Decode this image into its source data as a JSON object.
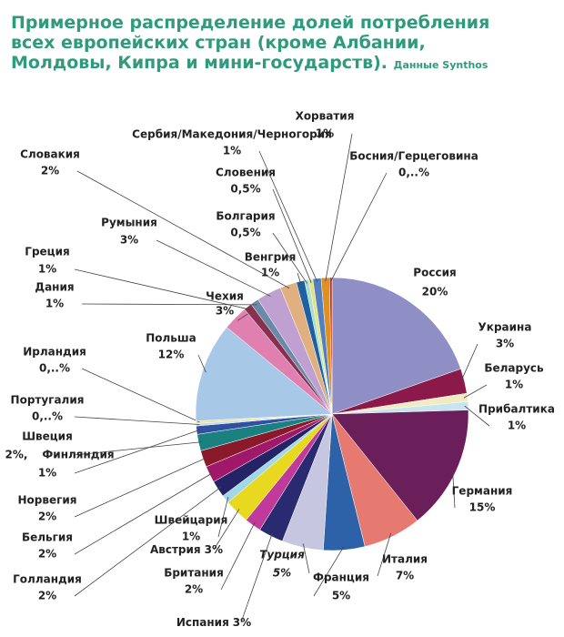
{
  "chart_data": {
    "type": "pie",
    "title": "Примерное распределение долей потребления всех европейских стран (кроме Албании, Молдовы, Кипра и мини-государств).",
    "subtitle": "Данные Synthos",
    "categories": [
      "Россия",
      "Украина",
      "Беларусь",
      "Прибалтика",
      "Германия",
      "Италия",
      "Франция",
      "Турция",
      "Испания",
      "Британия",
      "Австрия",
      "Швейцария",
      "Голландия",
      "Бельгия",
      "Норвегия",
      "Швеция",
      "Финляндия",
      "Португалия",
      "Ирландия",
      "Польша",
      "Чехия",
      "Греция",
      "Дания",
      "Румыния",
      "Словакия",
      "Венгрия",
      "Болгария",
      "Словения",
      "Сербия/Македония/Черногория",
      "Хорватия",
      "Босния/Герцеговина"
    ],
    "values": [
      20,
      3,
      1,
      1,
      15,
      7,
      5,
      5,
      3,
      2,
      3,
      1,
      2,
      2,
      2,
      2,
      1,
      0.3,
      0.3,
      12,
      3,
      1,
      1,
      3,
      2,
      1,
      0.5,
      0.5,
      1,
      1,
      0.3
    ],
    "value_labels": [
      "20%",
      "3%",
      "1%",
      "1%",
      "15%",
      "7%",
      "5%",
      "5%",
      "3%",
      "2%",
      "3%",
      "1%",
      "2%",
      "2%",
      "2%",
      "2%,",
      "1%",
      "0,..%",
      "0,..%",
      "12%",
      "3%",
      "1%",
      "1%",
      "3%",
      "2%",
      "1%",
      "0,5%",
      "0,5%",
      "1%",
      "1%",
      "0,..%"
    ],
    "colors": [
      "#8f8fc6",
      "#8b1a4a",
      "#f0ebc0",
      "#c8e4f0",
      "#6b1f5a",
      "#e67a70",
      "#2e62a8",
      "#c6c6e0",
      "#2a2a70",
      "#c03a9c",
      "#e8d820",
      "#a0d8e8",
      "#232366",
      "#a0186a",
      "#8a1a2a",
      "#1a8080",
      "#3050a0",
      "#c0d8f0",
      "#e8e0a0",
      "#a8c8e8",
      "#e080b0",
      "#883050",
      "#6a8aa8",
      "#c0a0d0",
      "#e0b080",
      "#2060a0",
      "#a0e0d0",
      "#e8e080",
      "#5080c0",
      "#e09020",
      "#c03010"
    ]
  }
}
